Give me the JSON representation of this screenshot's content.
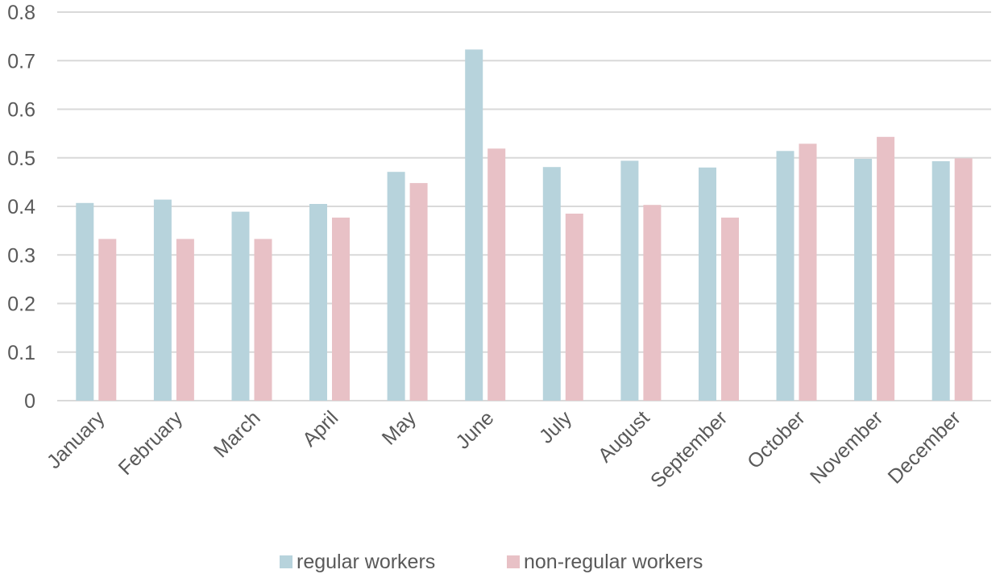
{
  "chart_data": {
    "type": "bar",
    "categories": [
      "January",
      "February",
      "March",
      "April",
      "May",
      "June",
      "July",
      "August",
      "September",
      "October",
      "November",
      "December"
    ],
    "series": [
      {
        "name": "regular workers",
        "color": "#b7d3dc",
        "values": [
          0.407,
          0.414,
          0.389,
          0.405,
          0.471,
          0.723,
          0.481,
          0.494,
          0.48,
          0.514,
          0.498,
          0.493
        ]
      },
      {
        "name": "non-regular workers",
        "color": "#e8c1c6",
        "values": [
          0.333,
          0.333,
          0.333,
          0.377,
          0.448,
          0.519,
          0.385,
          0.403,
          0.377,
          0.529,
          0.543,
          0.499
        ]
      }
    ],
    "yticks": [
      "0",
      "0.1",
      "0.2",
      "0.3",
      "0.4",
      "0.5",
      "0.6",
      "0.7",
      "0.8"
    ],
    "ylim": [
      0,
      0.8
    ],
    "grid": true,
    "legend_position": "bottom"
  }
}
